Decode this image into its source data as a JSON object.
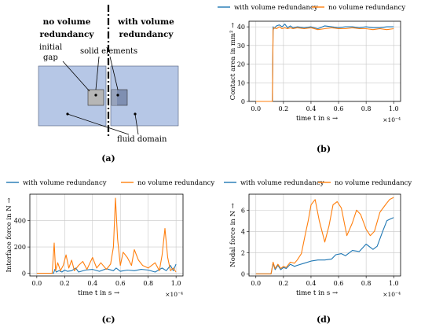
{
  "figure": {
    "panel_a": {
      "left_label_1": "no volume",
      "left_label_2": "redundancy",
      "right_label_1": "with volume",
      "right_label_2": "redundancy",
      "initial_gap_1": "initial",
      "initial_gap_2": "gap",
      "solid_elements": "solid elements",
      "fluid_domain": "fluid domain",
      "caption": "(a)",
      "colors": {
        "fluid": "#b6c7e6",
        "solid_left": "#b6b6b6",
        "solid_right": "#7f8fb2"
      }
    },
    "captions": {
      "b": "(b)",
      "c": "(c)",
      "d": "(d)"
    }
  },
  "chart_data": [
    {
      "id": "b",
      "type": "line",
      "xlabel": "time t in s →",
      "ylabel": "Contact area in mm² →",
      "x_exponent": "×10⁻⁴",
      "xlim": [
        -0.05,
        1.05
      ],
      "ylim": [
        0,
        43
      ],
      "xticks": [
        0.0,
        0.2,
        0.4,
        0.6,
        0.8,
        1.0
      ],
      "xtick_labels": [
        "0.0",
        "0.2",
        "0.4",
        "0.6",
        "0.8",
        "1.0"
      ],
      "yticks": [
        0,
        10,
        20,
        30,
        40
      ],
      "ytick_labels": [
        "0",
        "10",
        "20",
        "30",
        "40"
      ],
      "grid": true,
      "legend_position": "top",
      "series": [
        {
          "name": "with volume redundancy",
          "color": "#1f77b4",
          "x": [
            0.0,
            0.12,
            0.125,
            0.13,
            0.15,
            0.17,
            0.19,
            0.21,
            0.23,
            0.25,
            0.27,
            0.3,
            0.35,
            0.4,
            0.45,
            0.5,
            0.55,
            0.6,
            0.65,
            0.7,
            0.75,
            0.8,
            0.85,
            0.9,
            0.95,
            1.0
          ],
          "y": [
            0,
            0,
            40,
            39,
            40.5,
            41,
            40,
            41.5,
            39.5,
            40.5,
            39.5,
            40,
            39.5,
            40,
            39,
            40.5,
            40,
            39.5,
            40,
            40,
            39.5,
            40,
            39.5,
            39.5,
            40,
            40
          ]
        },
        {
          "name": "no volume redundancy",
          "color": "#ff7f0e",
          "x": [
            0.0,
            0.12,
            0.125,
            0.13,
            0.15,
            0.17,
            0.19,
            0.21,
            0.23,
            0.25,
            0.27,
            0.3,
            0.35,
            0.4,
            0.45,
            0.5,
            0.55,
            0.6,
            0.65,
            0.7,
            0.75,
            0.8,
            0.85,
            0.9,
            0.95,
            1.0
          ],
          "y": [
            0,
            0,
            38,
            39.5,
            39,
            40,
            39,
            39.5,
            39,
            39.5,
            39,
            39.5,
            39,
            39.5,
            38.5,
            39,
            39.5,
            39,
            39,
            39.5,
            39,
            39,
            38.5,
            39,
            38.5,
            39
          ]
        }
      ]
    },
    {
      "id": "c",
      "type": "line",
      "xlabel": "time t in s →",
      "ylabel": "Interface force in N →",
      "x_exponent": "×10⁻⁴",
      "xlim": [
        -0.05,
        1.05
      ],
      "ylim": [
        -20,
        600
      ],
      "xticks": [
        0.0,
        0.2,
        0.4,
        0.6,
        0.8,
        1.0
      ],
      "xtick_labels": [
        "0.0",
        "0.2",
        "0.4",
        "0.6",
        "0.8",
        "1.0"
      ],
      "yticks": [
        0,
        200,
        400
      ],
      "ytick_labels": [
        "0",
        "200",
        "400"
      ],
      "grid": true,
      "legend_position": "top",
      "series": [
        {
          "name": "with volume redundancy",
          "color": "#1f77b4",
          "x": [
            0.0,
            0.12,
            0.13,
            0.14,
            0.16,
            0.18,
            0.2,
            0.22,
            0.25,
            0.28,
            0.3,
            0.35,
            0.4,
            0.45,
            0.5,
            0.55,
            0.57,
            0.6,
            0.65,
            0.7,
            0.75,
            0.8,
            0.85,
            0.9,
            0.93,
            0.96,
            0.98,
            1.0
          ],
          "y": [
            0,
            0,
            30,
            10,
            20,
            10,
            25,
            15,
            20,
            40,
            10,
            25,
            30,
            15,
            35,
            20,
            40,
            15,
            25,
            20,
            30,
            25,
            10,
            40,
            20,
            60,
            20,
            70
          ]
        },
        {
          "name": "no volume redundancy",
          "color": "#ff7f0e",
          "x": [
            0.0,
            0.11,
            0.125,
            0.135,
            0.15,
            0.17,
            0.19,
            0.21,
            0.23,
            0.25,
            0.27,
            0.3,
            0.33,
            0.36,
            0.4,
            0.43,
            0.46,
            0.5,
            0.53,
            0.55,
            0.565,
            0.58,
            0.6,
            0.62,
            0.65,
            0.68,
            0.7,
            0.73,
            0.76,
            0.8,
            0.85,
            0.88,
            0.9,
            0.92,
            0.94,
            0.96,
            0.98,
            1.0
          ],
          "y": [
            0,
            0,
            230,
            20,
            80,
            20,
            60,
            140,
            40,
            100,
            20,
            60,
            90,
            30,
            120,
            40,
            80,
            30,
            70,
            200,
            570,
            260,
            60,
            160,
            120,
            60,
            180,
            100,
            60,
            40,
            80,
            20,
            140,
            340,
            120,
            20,
            40,
            10
          ]
        }
      ]
    },
    {
      "id": "d",
      "type": "line",
      "xlabel": "time t in s →",
      "ylabel": "Nodal force in N →",
      "x_exponent": "×10⁻⁴",
      "xlim": [
        -0.05,
        1.05
      ],
      "ylim": [
        -0.2,
        7.5
      ],
      "xticks": [
        0.0,
        0.2,
        0.4,
        0.6,
        0.8,
        1.0
      ],
      "xtick_labels": [
        "0.0",
        "0.2",
        "0.4",
        "0.6",
        "0.8",
        "1.0"
      ],
      "yticks": [
        0,
        2,
        4,
        6
      ],
      "ytick_labels": [
        "0",
        "2",
        "4",
        "6"
      ],
      "grid": true,
      "legend_position": "top",
      "series": [
        {
          "name": "with volume redundancy",
          "color": "#1f77b4",
          "x": [
            0.0,
            0.11,
            0.125,
            0.14,
            0.16,
            0.18,
            0.2,
            0.22,
            0.25,
            0.28,
            0.3,
            0.35,
            0.4,
            0.45,
            0.5,
            0.55,
            0.58,
            0.62,
            0.65,
            0.7,
            0.75,
            0.8,
            0.85,
            0.88,
            0.92,
            0.95,
            0.98,
            1.0
          ],
          "y": [
            0,
            0,
            1.0,
            0.4,
            0.8,
            0.4,
            0.6,
            0.5,
            0.9,
            0.7,
            0.8,
            1.0,
            1.2,
            1.3,
            1.3,
            1.4,
            1.8,
            1.9,
            1.7,
            2.2,
            2.1,
            2.8,
            2.3,
            2.6,
            4.0,
            5.0,
            5.2,
            5.3
          ]
        },
        {
          "name": "no volume redundancy",
          "color": "#ff7f0e",
          "x": [
            0.0,
            0.11,
            0.125,
            0.14,
            0.16,
            0.18,
            0.2,
            0.22,
            0.25,
            0.28,
            0.3,
            0.33,
            0.36,
            0.38,
            0.4,
            0.43,
            0.46,
            0.5,
            0.53,
            0.56,
            0.59,
            0.62,
            0.66,
            0.7,
            0.73,
            0.76,
            0.8,
            0.83,
            0.86,
            0.9,
            0.94,
            0.97,
            1.0
          ],
          "y": [
            0,
            0,
            1.1,
            0.5,
            0.9,
            0.5,
            0.7,
            0.6,
            1.1,
            1.0,
            1.3,
            1.9,
            3.8,
            5.0,
            6.5,
            7.0,
            5.0,
            3.0,
            4.5,
            6.5,
            6.8,
            6.2,
            3.6,
            4.8,
            6.0,
            5.6,
            4.2,
            3.6,
            4.0,
            5.8,
            6.5,
            7.0,
            7.2
          ]
        }
      ]
    }
  ]
}
